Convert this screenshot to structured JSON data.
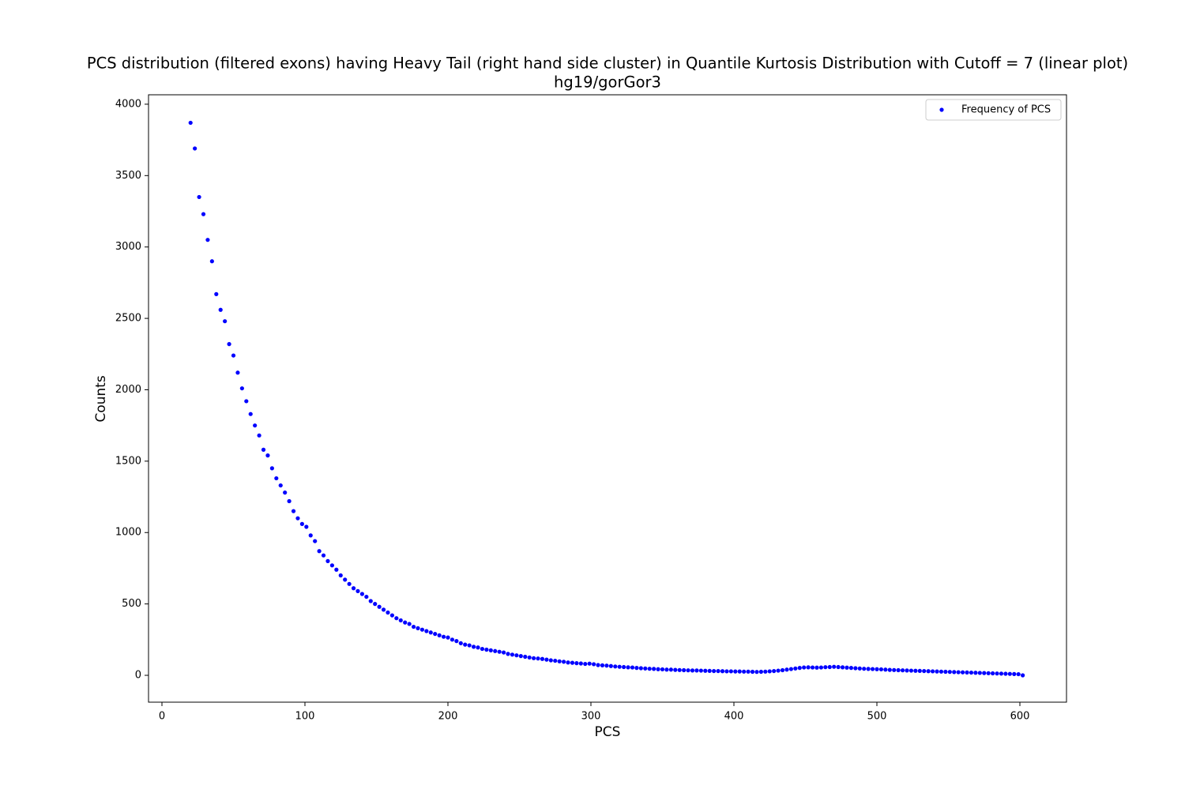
{
  "chart_data": {
    "type": "scatter",
    "title": "PCS distribution (filtered exons) having Heavy Tail (right hand side cluster) in Quantile Kurtosis Distribution with Cutoff = 7 (linear plot)",
    "subtitle": "hg19/gorGor3",
    "x_label": "PCS",
    "y_label": "Counts",
    "legend": "upper right",
    "xlim": [
      -9.4,
      632.6
    ],
    "xticks": [
      0,
      100,
      200,
      300,
      400,
      500,
      600
    ],
    "ylim": [
      -188,
      4066
    ],
    "yticks": [
      0,
      500,
      1000,
      1500,
      2000,
      2500,
      3000,
      3500,
      4000
    ],
    "x": [
      20,
      23,
      26,
      29,
      32,
      35,
      38,
      41,
      44,
      47,
      50,
      53,
      56,
      59,
      62,
      65,
      68,
      71,
      74,
      77,
      80,
      83,
      86,
      89,
      92,
      95,
      98,
      101,
      104,
      107,
      110,
      113,
      116,
      119,
      122,
      125,
      128,
      131,
      134,
      137,
      140,
      143,
      146,
      149,
      152,
      155,
      158,
      161,
      164,
      167,
      170,
      173,
      176,
      179,
      182,
      185,
      188,
      191,
      194,
      197,
      200,
      203,
      206,
      209,
      212,
      215,
      218,
      221,
      224,
      227,
      230,
      233,
      236,
      239,
      242,
      245,
      248,
      251,
      254,
      257,
      260,
      263,
      266,
      269,
      272,
      275,
      278,
      281,
      284,
      287,
      290,
      293,
      296,
      299,
      302,
      305,
      308,
      311,
      314,
      317,
      320,
      323,
      326,
      329,
      332,
      335,
      338,
      341,
      344,
      347,
      350,
      353,
      356,
      359,
      362,
      365,
      368,
      371,
      374,
      377,
      380,
      383,
      386,
      389,
      392,
      395,
      398,
      401,
      404,
      407,
      410,
      413,
      416,
      419,
      422,
      425,
      428,
      431,
      434,
      437,
      440,
      443,
      446,
      449,
      452,
      455,
      458,
      461,
      464,
      467,
      470,
      473,
      476,
      479,
      482,
      485,
      488,
      491,
      494,
      497,
      500,
      503,
      506,
      509,
      512,
      515,
      518,
      521,
      524,
      527,
      530,
      533,
      536,
      539,
      542,
      545,
      548,
      551,
      554,
      557,
      560,
      563,
      566,
      569,
      572,
      575,
      578,
      581,
      584,
      587,
      590,
      593,
      596,
      599,
      602
    ],
    "series": [
      {
        "name": "Frequency of PCS",
        "color": "#0000ff",
        "values": [
          3870,
          3690,
          3350,
          3230,
          3050,
          2900,
          2670,
          2560,
          2480,
          2320,
          2240,
          2120,
          2010,
          1920,
          1830,
          1750,
          1680,
          1580,
          1540,
          1450,
          1380,
          1330,
          1280,
          1220,
          1150,
          1100,
          1060,
          1040,
          980,
          940,
          870,
          840,
          800,
          770,
          740,
          700,
          670,
          640,
          610,
          590,
          570,
          550,
          520,
          500,
          480,
          460,
          440,
          420,
          400,
          385,
          370,
          360,
          340,
          330,
          320,
          310,
          300,
          290,
          280,
          270,
          265,
          250,
          240,
          225,
          215,
          210,
          200,
          195,
          185,
          180,
          175,
          170,
          165,
          160,
          150,
          145,
          140,
          135,
          130,
          125,
          120,
          118,
          115,
          110,
          105,
          102,
          98,
          95,
          90,
          88,
          85,
          83,
          80,
          82,
          78,
          72,
          70,
          68,
          65,
          62,
          60,
          58,
          56,
          55,
          52,
          50,
          48,
          46,
          45,
          43,
          42,
          40,
          40,
          38,
          37,
          36,
          35,
          34,
          34,
          33,
          32,
          31,
          30,
          30,
          29,
          28,
          28,
          27,
          27,
          26,
          26,
          25,
          24,
          25,
          26,
          28,
          30,
          33,
          36,
          40,
          44,
          48,
          52,
          55,
          56,
          55,
          54,
          55,
          57,
          58,
          60,
          58,
          56,
          54,
          52,
          50,
          48,
          46,
          45,
          44,
          43,
          42,
          40,
          38,
          37,
          36,
          35,
          34,
          33,
          32,
          31,
          30,
          29,
          28,
          27,
          26,
          25,
          24,
          23,
          22,
          21,
          20,
          19,
          18,
          17,
          16,
          15,
          14,
          13,
          12,
          11,
          10,
          9,
          8,
          0
        ]
      }
    ]
  }
}
